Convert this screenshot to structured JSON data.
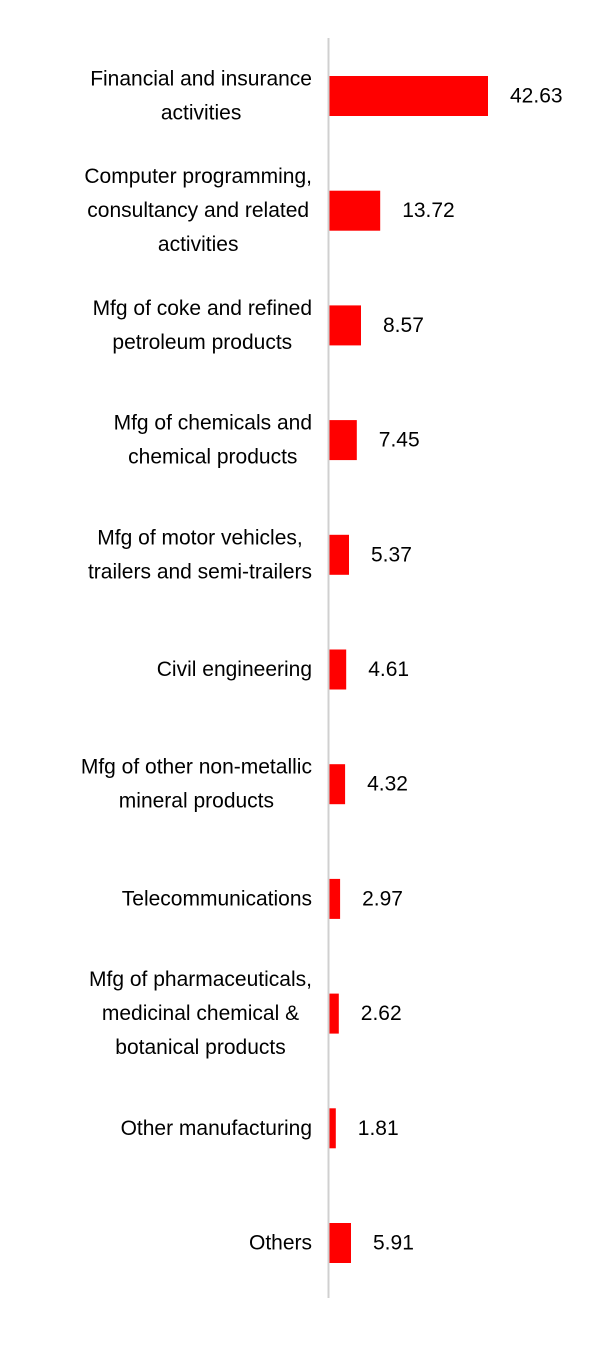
{
  "chart_data": {
    "type": "bar",
    "orientation": "horizontal",
    "categories": [
      [
        "Financial and insurance",
        "activities"
      ],
      [
        "Computer programming,",
        "consultancy and related",
        "activities"
      ],
      [
        "Mfg of coke and refined",
        "petroleum products"
      ],
      [
        "Mfg of chemicals and",
        "chemical products"
      ],
      [
        "Mfg of motor vehicles,",
        "trailers and semi-trailers"
      ],
      [
        "Civil engineering"
      ],
      [
        "Mfg of other non-metallic",
        "mineral products"
      ],
      [
        "Telecommunications"
      ],
      [
        "Mfg of pharmaceuticals,",
        "medicinal chemical &",
        "botanical products"
      ],
      [
        "Other manufacturing"
      ],
      [
        "Others"
      ]
    ],
    "values": [
      42.63,
      13.72,
      8.57,
      7.45,
      5.37,
      4.61,
      4.32,
      2.97,
      2.62,
      1.81,
      5.91
    ],
    "value_labels": [
      "42.63",
      "13.72",
      "8.57",
      "7.45",
      "5.37",
      "4.61",
      "4.32",
      "2.97",
      "2.62",
      "1.81",
      "5.91"
    ],
    "title": "",
    "xlabel": "",
    "ylabel": "",
    "xlim": [
      0,
      42.63
    ],
    "grid": false,
    "legend": "none",
    "bar_color": "#ff0000",
    "axis_color": "#d0d0d0"
  }
}
